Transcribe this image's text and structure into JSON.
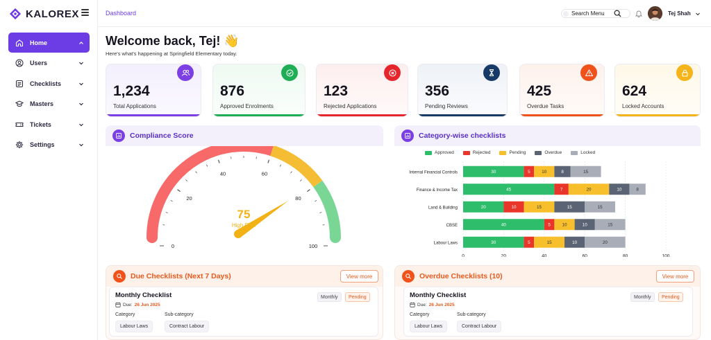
{
  "brand": {
    "name": "KALOREX"
  },
  "sidebar": {
    "items": [
      {
        "label": "Home",
        "icon": "home-icon",
        "active": true
      },
      {
        "label": "Users",
        "icon": "user-icon",
        "active": false
      },
      {
        "label": "Checklists",
        "icon": "checklist-icon",
        "active": false
      },
      {
        "label": "Masters",
        "icon": "graduation-cap-icon",
        "active": false
      },
      {
        "label": "Tickets",
        "icon": "ticket-icon",
        "active": false
      },
      {
        "label": "Settings",
        "icon": "gear-icon",
        "active": false
      }
    ]
  },
  "topbar": {
    "breadcrumb": "Dashboard",
    "search_label": "Search Menu",
    "user_name": "Tej Shah"
  },
  "welcome": {
    "title": "Welcome back, Tej! 👋",
    "subtitle": "Here's what's happening at Springfield Elementary today."
  },
  "stats": [
    {
      "value": "1,234",
      "label": "Total Applications",
      "color": "#7b3fe4",
      "icon": "users-icon"
    },
    {
      "value": "876",
      "label": "Approved Enrolments",
      "color": "#1fae55",
      "icon": "check-circle-icon"
    },
    {
      "value": "123",
      "label": "Rejected Applications",
      "color": "#e5262c",
      "icon": "x-circle-icon"
    },
    {
      "value": "356",
      "label": "Pending Reviews",
      "color": "#173a66",
      "icon": "hourglass-icon"
    },
    {
      "value": "425",
      "label": "Overdue Tasks",
      "color": "#f0521b",
      "icon": "warning-icon"
    },
    {
      "value": "624",
      "label": "Locked Accounts",
      "color": "#f4b41a",
      "icon": "lock-icon"
    }
  ],
  "compliance": {
    "title": "Compliance Score",
    "score": 75,
    "risk_label": "High Risk",
    "ticks": [
      "0",
      "20",
      "40",
      "60",
      "80",
      "100"
    ]
  },
  "category": {
    "title": "Category-wise checklists"
  },
  "chart_data": {
    "type": "bar",
    "orientation": "horizontal",
    "stacked": true,
    "categories": [
      "Internal Financial Controls",
      "Finance & Income Tax",
      "Land & Building",
      "CBSE",
      "Labour Laws"
    ],
    "series": [
      {
        "name": "Approved",
        "color": "#2dbd6b",
        "values": [
          30,
          45,
          20,
          40,
          30
        ]
      },
      {
        "name": "Rejected",
        "color": "#e9352a",
        "values": [
          5,
          7,
          10,
          5,
          5
        ]
      },
      {
        "name": "Pending",
        "color": "#f6bf2b",
        "values": [
          10,
          20,
          15,
          10,
          15
        ]
      },
      {
        "name": "Overdue",
        "color": "#5b6474",
        "values": [
          8,
          10,
          15,
          10,
          10
        ]
      },
      {
        "name": "Locked",
        "color": "#a9adb7",
        "values": [
          15,
          8,
          15,
          15,
          20
        ]
      }
    ],
    "xticks": [
      "0",
      "20",
      "40",
      "60",
      "80",
      "100"
    ],
    "xlim": [
      0,
      100
    ],
    "legend_position": "top",
    "grid": true
  },
  "due": {
    "title": "Due Checklists (Next 7 Days)",
    "view_more": "View more",
    "item": {
      "title": "Monthly Checklist",
      "due_prefix": "Due:",
      "due_date": "26 Jun 2025",
      "frequency": "Monthly",
      "status": "Pending",
      "category_label": "Category",
      "subcategory_label": "Sub-category",
      "category": "Labour Laws",
      "subcategory": "Contract Labour"
    }
  },
  "overdue": {
    "title": "Overdue Checklists (10)",
    "view_more": "View more",
    "item": {
      "title": "Monthly Checklist",
      "due_prefix": "Due:",
      "due_date": "26 Jun 2025",
      "frequency": "Monthly",
      "status": "Pending",
      "category_label": "Category",
      "subcategory_label": "Sub-category",
      "category": "Labour Laws",
      "subcategory": "Contract Labour"
    }
  }
}
